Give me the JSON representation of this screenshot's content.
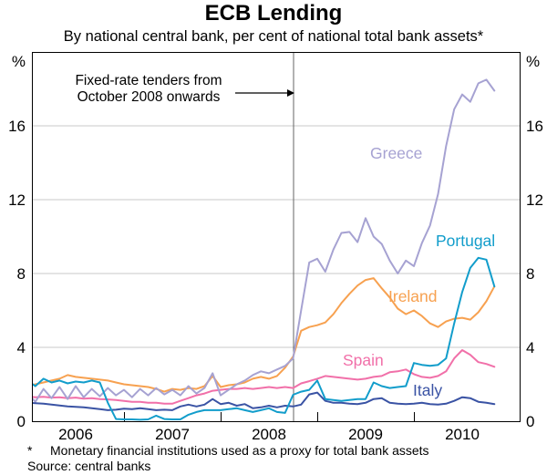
{
  "header": {
    "title": "ECB Lending",
    "subtitle": "By national central bank, per cent of national total bank assets*"
  },
  "annotation": {
    "line1": "Fixed-rate tenders from",
    "line2": "October 2008 onwards"
  },
  "footnote": {
    "marker": "*",
    "text": "Monetary financial institutions used as a proxy for total bank assets",
    "source": "Source: central banks"
  },
  "axes": {
    "y_unit_label": "%",
    "y_tick_labels": [
      "0",
      "4",
      "8",
      "12",
      "16"
    ],
    "x_tick_labels": [
      "2006",
      "2007",
      "2008",
      "2009",
      "2010"
    ]
  },
  "chart_data": {
    "type": "line",
    "title": "ECB Lending",
    "subtitle": "By national central bank, per cent of national total bank assets*",
    "ylabel": "%",
    "ylim": [
      0,
      20
    ],
    "yticks": [
      0,
      4,
      8,
      12,
      16
    ],
    "grid": true,
    "frequency": "monthly",
    "x_start": "2006-01",
    "x_end": "2010-11",
    "event_line": {
      "date": "2008-10",
      "label": "Fixed-rate tenders from October 2008 onwards"
    },
    "colors": {
      "grid": "#c9c9c9",
      "frame": "#000000",
      "event_line": "#666666"
    },
    "series": [
      {
        "name": "Greece",
        "color": "#a6a2d2",
        "values": [
          1.5,
          1.05,
          1.75,
          1.25,
          1.85,
          1.2,
          1.9,
          1.3,
          1.75,
          1.35,
          1.8,
          1.4,
          1.7,
          1.3,
          1.75,
          1.4,
          1.8,
          1.45,
          1.7,
          1.4,
          1.9,
          1.5,
          1.8,
          2.6,
          1.4,
          1.7,
          2.0,
          2.2,
          2.5,
          2.7,
          2.6,
          2.8,
          3.0,
          3.4,
          6.0,
          8.6,
          8.8,
          8.1,
          9.3,
          10.2,
          10.25,
          9.7,
          11.0,
          10.0,
          9.6,
          8.7,
          8.0,
          8.7,
          8.4,
          9.65,
          10.6,
          12.3,
          14.9,
          16.9,
          17.7,
          17.3,
          18.3,
          18.5,
          17.9
        ]
      },
      {
        "name": "Portugal",
        "color": "#129dcb",
        "values": [
          2.2,
          1.9,
          2.3,
          2.1,
          2.2,
          2.05,
          2.15,
          2.1,
          2.2,
          2.1,
          1.0,
          0.12,
          0.1,
          0.1,
          0.08,
          0.1,
          0.3,
          0.12,
          0.1,
          0.1,
          0.35,
          0.5,
          0.6,
          0.6,
          0.6,
          0.65,
          0.7,
          0.6,
          0.5,
          0.6,
          0.7,
          0.5,
          0.45,
          1.43,
          1.6,
          1.7,
          2.2,
          1.2,
          1.15,
          1.1,
          1.15,
          1.2,
          1.2,
          2.1,
          1.9,
          1.8,
          1.85,
          1.9,
          3.15,
          3.05,
          3.0,
          3.05,
          3.4,
          5.3,
          7.0,
          8.3,
          8.85,
          8.75,
          7.3
        ]
      },
      {
        "name": "Ireland",
        "color": "#f7a150",
        "values": [
          1.9,
          2.0,
          2.1,
          2.2,
          2.3,
          2.5,
          2.4,
          2.35,
          2.3,
          2.25,
          2.2,
          2.1,
          2.0,
          1.95,
          1.9,
          1.85,
          1.75,
          1.6,
          1.75,
          1.7,
          1.8,
          1.75,
          1.9,
          2.45,
          1.85,
          1.95,
          2.0,
          2.1,
          2.3,
          2.4,
          2.3,
          2.45,
          2.9,
          3.5,
          4.9,
          5.1,
          5.2,
          5.35,
          5.8,
          6.4,
          6.9,
          7.35,
          7.65,
          7.75,
          7.2,
          6.7,
          6.1,
          5.8,
          6.0,
          5.7,
          5.3,
          5.1,
          5.4,
          5.55,
          5.6,
          5.5,
          5.9,
          6.5,
          7.3
        ]
      },
      {
        "name": "Spain",
        "color": "#f170a9",
        "values": [
          1.35,
          1.3,
          1.32,
          1.28,
          1.3,
          1.25,
          1.28,
          1.22,
          1.25,
          1.2,
          1.18,
          1.15,
          1.1,
          1.05,
          1.05,
          1.0,
          1.0,
          0.95,
          0.95,
          1.1,
          1.25,
          1.4,
          1.5,
          1.65,
          1.7,
          1.75,
          1.75,
          1.8,
          1.75,
          1.8,
          1.85,
          1.8,
          1.85,
          1.8,
          2.05,
          2.17,
          2.3,
          2.45,
          2.4,
          2.35,
          2.3,
          2.25,
          2.3,
          2.4,
          2.45,
          2.65,
          2.7,
          2.8,
          2.55,
          2.4,
          2.35,
          2.45,
          2.7,
          3.4,
          3.85,
          3.6,
          3.2,
          3.1,
          2.95
        ]
      },
      {
        "name": "Italy",
        "color": "#3a53a4",
        "values": [
          1.0,
          0.98,
          0.95,
          0.9,
          0.85,
          0.8,
          0.78,
          0.75,
          0.7,
          0.65,
          0.6,
          0.62,
          0.68,
          0.65,
          0.7,
          0.65,
          0.6,
          0.62,
          0.6,
          0.8,
          0.9,
          0.8,
          0.9,
          1.2,
          0.93,
          1.0,
          0.84,
          0.93,
          0.7,
          0.75,
          0.84,
          0.75,
          0.84,
          0.8,
          0.9,
          1.45,
          1.55,
          1.1,
          1.0,
          1.0,
          0.95,
          0.93,
          1.0,
          1.2,
          1.25,
          1.0,
          0.95,
          0.93,
          0.95,
          1.0,
          0.93,
          0.9,
          0.95,
          1.1,
          1.3,
          1.25,
          1.05,
          1.0,
          0.93
        ]
      }
    ]
  }
}
